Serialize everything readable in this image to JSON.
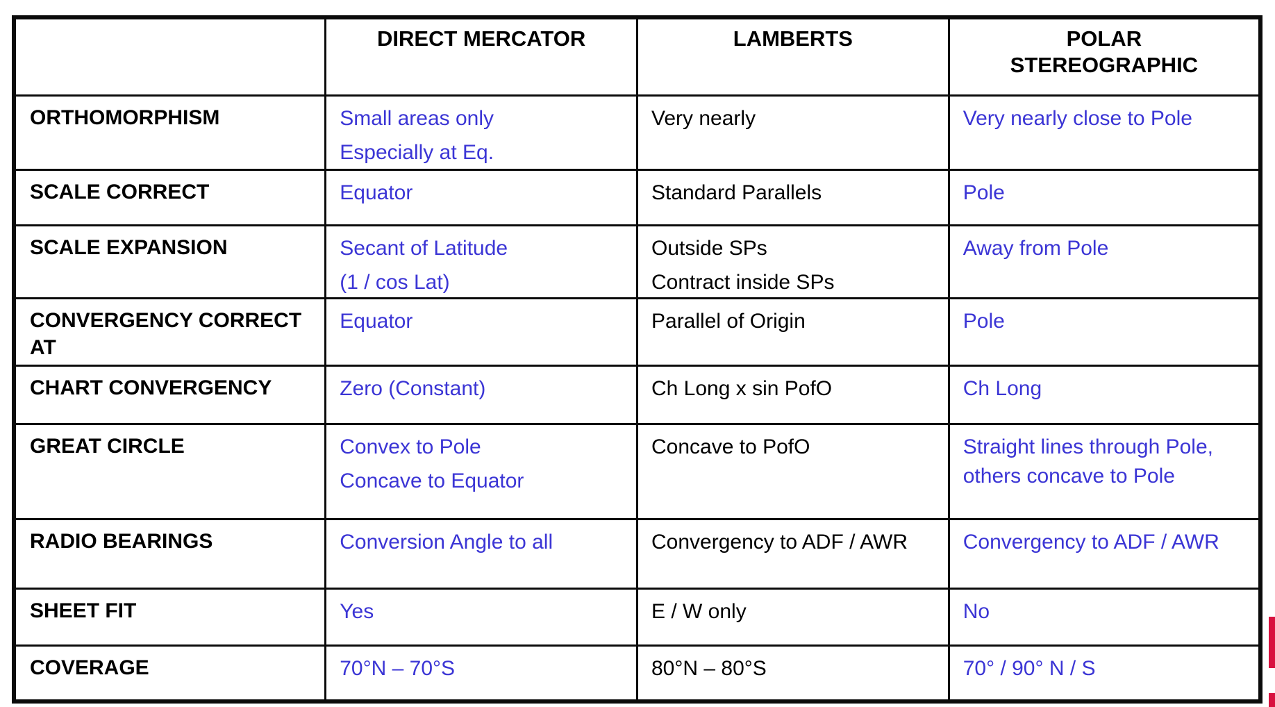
{
  "slide": {
    "background": "#ffffff",
    "text_blue": "#3b35d5",
    "text_black": "#000000",
    "border_black": "#0b0b0b",
    "accent_red": "#d8113f"
  },
  "table": {
    "header": {
      "corner_label": "",
      "keys": [
        "direct-mercator",
        "lamberts",
        "polar-stereographic"
      ],
      "columns": [
        {
          "lines": [
            "DIRECT MERCATOR"
          ]
        },
        {
          "lines": [
            "LAMBERTS"
          ]
        },
        {
          "lines": [
            "POLAR",
            "STEREOGRAPHIC"
          ]
        }
      ]
    },
    "rows": [
      {
        "label": "ORTHOMORPHISM",
        "cells": [
          {
            "color": "blue",
            "paras": [
              "Small areas only",
              "Especially at Eq."
            ]
          },
          {
            "color": "black",
            "paras": [
              "Very nearly"
            ]
          },
          {
            "color": "blue",
            "paras": [
              "Very nearly close to Pole"
            ]
          }
        ]
      },
      {
        "label": "SCALE CORRECT",
        "cells": [
          {
            "color": "blue",
            "paras": [
              "Equator"
            ]
          },
          {
            "color": "black",
            "paras": [
              "Standard Parallels"
            ]
          },
          {
            "color": "blue",
            "paras": [
              "Pole"
            ]
          }
        ]
      },
      {
        "label": "SCALE EXPANSION",
        "cells": [
          {
            "color": "blue",
            "paras": [
              "Secant of Latitude",
              "(1 / cos Lat)"
            ]
          },
          {
            "color": "black",
            "paras": [
              "Outside SPs",
              "Contract inside SPs"
            ]
          },
          {
            "color": "blue",
            "paras": [
              "Away from Pole"
            ]
          }
        ]
      },
      {
        "label": "CONVERGENCY CORRECT AT",
        "cells": [
          {
            "color": "blue",
            "paras": [
              "Equator"
            ]
          },
          {
            "color": "black",
            "paras": [
              "Parallel of Origin"
            ]
          },
          {
            "color": "blue",
            "paras": [
              "Pole"
            ]
          }
        ]
      },
      {
        "label": "CHART CONVERGENCY",
        "cells": [
          {
            "color": "blue",
            "paras": [
              "Zero (Constant)"
            ]
          },
          {
            "color": "black",
            "paras": [
              "Ch Long x sin PofO"
            ]
          },
          {
            "color": "blue",
            "paras": [
              "Ch Long"
            ]
          }
        ]
      },
      {
        "label": "GREAT CIRCLE",
        "cells": [
          {
            "color": "blue",
            "paras": [
              "Convex to Pole",
              "Concave to Equator"
            ]
          },
          {
            "color": "black",
            "paras": [
              "Concave to PofO"
            ]
          },
          {
            "color": "blue",
            "paras": [
              "Straight lines through Pole, others concave to Pole"
            ]
          }
        ]
      },
      {
        "label": "RADIO BEARINGS",
        "cells": [
          {
            "color": "blue",
            "paras": [
              "Conversion Angle to all"
            ]
          },
          {
            "color": "black",
            "paras": [
              "Convergency to ADF / AWR"
            ]
          },
          {
            "color": "blue",
            "paras": [
              "Convergency to ADF / AWR"
            ]
          }
        ]
      },
      {
        "label": "SHEET FIT",
        "cells": [
          {
            "color": "blue",
            "paras": [
              "Yes"
            ]
          },
          {
            "color": "black",
            "paras": [
              "E / W only"
            ]
          },
          {
            "color": "blue",
            "paras": [
              "No"
            ]
          }
        ]
      },
      {
        "label": "COVERAGE",
        "cells": [
          {
            "color": "blue",
            "paras": [
              "70°N – 70°S"
            ]
          },
          {
            "color": "black",
            "paras": [
              "80°N – 80°S"
            ]
          },
          {
            "color": "blue",
            "paras": [
              "70° / 90° N / S"
            ]
          }
        ]
      }
    ]
  }
}
